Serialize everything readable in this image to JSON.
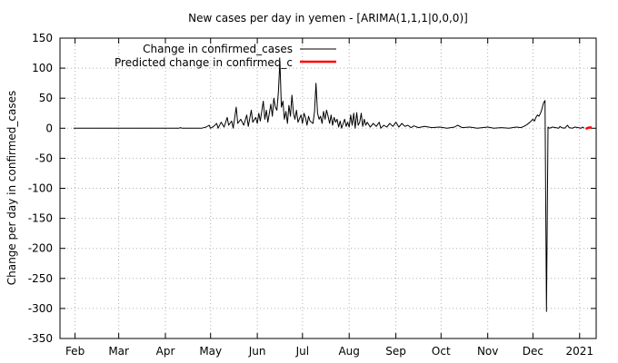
{
  "chart_data": {
    "type": "line",
    "title": "New cases per day in yemen -  [ARIMA(1,1,1|0,0,0)]",
    "xlabel": "",
    "ylabel": "Change per day in confirmed_cases",
    "ylim": [
      -350,
      150
    ],
    "yticks": [
      150,
      100,
      50,
      0,
      -50,
      -100,
      -150,
      -200,
      -250,
      -300,
      -350
    ],
    "xlim": [
      "2020-01-22",
      "2021-01-12"
    ],
    "xticks": [
      {
        "label": "Feb",
        "date": "2020-02-01"
      },
      {
        "label": "Mar",
        "date": "2020-03-01"
      },
      {
        "label": "Apr",
        "date": "2020-04-01"
      },
      {
        "label": "May",
        "date": "2020-05-01"
      },
      {
        "label": "Jun",
        "date": "2020-06-01"
      },
      {
        "label": "Jul",
        "date": "2020-07-01"
      },
      {
        "label": "Aug",
        "date": "2020-08-01"
      },
      {
        "label": "Sep",
        "date": "2020-09-01"
      },
      {
        "label": "Oct",
        "date": "2020-10-01"
      },
      {
        "label": "Nov",
        "date": "2020-11-01"
      },
      {
        "label": "Dec",
        "date": "2020-12-01"
      },
      {
        "label": "2021",
        "date": "2021-01-01"
      }
    ],
    "grid": true,
    "legend_position": "top-left",
    "series": [
      {
        "name": "Change in confirmed_cases",
        "color": "#000000",
        "points": [
          [
            "2020-01-31",
            0
          ],
          [
            "2020-04-10",
            0
          ],
          [
            "2020-04-11",
            1
          ],
          [
            "2020-04-12",
            0
          ],
          [
            "2020-04-25",
            0
          ],
          [
            "2020-04-28",
            2
          ],
          [
            "2020-04-30",
            5
          ],
          [
            "2020-05-01",
            0
          ],
          [
            "2020-05-03",
            3
          ],
          [
            "2020-05-05",
            8
          ],
          [
            "2020-05-06",
            0
          ],
          [
            "2020-05-08",
            10
          ],
          [
            "2020-05-10",
            2
          ],
          [
            "2020-05-12",
            18
          ],
          [
            "2020-05-13",
            5
          ],
          [
            "2020-05-15",
            12
          ],
          [
            "2020-05-16",
            0
          ],
          [
            "2020-05-18",
            35
          ],
          [
            "2020-05-19",
            8
          ],
          [
            "2020-05-21",
            15
          ],
          [
            "2020-05-23",
            5
          ],
          [
            "2020-05-25",
            22
          ],
          [
            "2020-05-26",
            3
          ],
          [
            "2020-05-28",
            30
          ],
          [
            "2020-05-29",
            10
          ],
          [
            "2020-05-31",
            18
          ],
          [
            "2020-06-01",
            8
          ],
          [
            "2020-06-02",
            25
          ],
          [
            "2020-06-03",
            12
          ],
          [
            "2020-06-05",
            45
          ],
          [
            "2020-06-06",
            15
          ],
          [
            "2020-06-07",
            30
          ],
          [
            "2020-06-08",
            10
          ],
          [
            "2020-06-10",
            40
          ],
          [
            "2020-06-11",
            20
          ],
          [
            "2020-06-12",
            50
          ],
          [
            "2020-06-13",
            35
          ],
          [
            "2020-06-14",
            30
          ],
          [
            "2020-06-15",
            60
          ],
          [
            "2020-06-16",
            112
          ],
          [
            "2020-06-17",
            35
          ],
          [
            "2020-06-18",
            45
          ],
          [
            "2020-06-19",
            15
          ],
          [
            "2020-06-20",
            28
          ],
          [
            "2020-06-21",
            8
          ],
          [
            "2020-06-22",
            38
          ],
          [
            "2020-06-23",
            20
          ],
          [
            "2020-06-24",
            55
          ],
          [
            "2020-06-25",
            25
          ],
          [
            "2020-06-26",
            15
          ],
          [
            "2020-06-27",
            30
          ],
          [
            "2020-06-28",
            10
          ],
          [
            "2020-06-30",
            22
          ],
          [
            "2020-07-01",
            8
          ],
          [
            "2020-07-02",
            25
          ],
          [
            "2020-07-03",
            18
          ],
          [
            "2020-07-04",
            5
          ],
          [
            "2020-07-05",
            20
          ],
          [
            "2020-07-06",
            12
          ],
          [
            "2020-07-08",
            8
          ],
          [
            "2020-07-09",
            28
          ],
          [
            "2020-07-10",
            75
          ],
          [
            "2020-07-11",
            25
          ],
          [
            "2020-07-12",
            15
          ],
          [
            "2020-07-13",
            20
          ],
          [
            "2020-07-14",
            8
          ],
          [
            "2020-07-15",
            28
          ],
          [
            "2020-07-16",
            15
          ],
          [
            "2020-07-17",
            30
          ],
          [
            "2020-07-18",
            20
          ],
          [
            "2020-07-19",
            8
          ],
          [
            "2020-07-20",
            22
          ],
          [
            "2020-07-21",
            5
          ],
          [
            "2020-07-22",
            18
          ],
          [
            "2020-07-23",
            10
          ],
          [
            "2020-07-24",
            15
          ],
          [
            "2020-07-25",
            2
          ],
          [
            "2020-07-26",
            12
          ],
          [
            "2020-07-27",
            0
          ],
          [
            "2020-07-28",
            8
          ],
          [
            "2020-07-29",
            15
          ],
          [
            "2020-07-30",
            3
          ],
          [
            "2020-07-31",
            10
          ],
          [
            "2020-08-01",
            2
          ],
          [
            "2020-08-02",
            22
          ],
          [
            "2020-08-03",
            5
          ],
          [
            "2020-08-04",
            25
          ],
          [
            "2020-08-05",
            0
          ],
          [
            "2020-08-06",
            26
          ],
          [
            "2020-08-07",
            5
          ],
          [
            "2020-08-08",
            10
          ],
          [
            "2020-08-09",
            25
          ],
          [
            "2020-08-10",
            3
          ],
          [
            "2020-08-11",
            15
          ],
          [
            "2020-08-12",
            5
          ],
          [
            "2020-08-13",
            10
          ],
          [
            "2020-08-15",
            2
          ],
          [
            "2020-08-17",
            8
          ],
          [
            "2020-08-19",
            3
          ],
          [
            "2020-08-21",
            10
          ],
          [
            "2020-08-22",
            0
          ],
          [
            "2020-08-24",
            5
          ],
          [
            "2020-08-26",
            2
          ],
          [
            "2020-08-28",
            8
          ],
          [
            "2020-08-30",
            3
          ],
          [
            "2020-09-01",
            10
          ],
          [
            "2020-09-03",
            2
          ],
          [
            "2020-09-05",
            8
          ],
          [
            "2020-09-07",
            3
          ],
          [
            "2020-09-09",
            5
          ],
          [
            "2020-09-11",
            1
          ],
          [
            "2020-09-13",
            4
          ],
          [
            "2020-09-16",
            1
          ],
          [
            "2020-09-20",
            3
          ],
          [
            "2020-09-25",
            1
          ],
          [
            "2020-09-30",
            2
          ],
          [
            "2020-10-05",
            0
          ],
          [
            "2020-10-10",
            2
          ],
          [
            "2020-10-12",
            5
          ],
          [
            "2020-10-15",
            1
          ],
          [
            "2020-10-20",
            2
          ],
          [
            "2020-10-25",
            0
          ],
          [
            "2020-11-01",
            2
          ],
          [
            "2020-11-05",
            0
          ],
          [
            "2020-11-10",
            1
          ],
          [
            "2020-11-15",
            0
          ],
          [
            "2020-11-20",
            2
          ],
          [
            "2020-11-23",
            1
          ],
          [
            "2020-11-25",
            3
          ],
          [
            "2020-11-27",
            6
          ],
          [
            "2020-11-29",
            10
          ],
          [
            "2020-12-01",
            15
          ],
          [
            "2020-12-02",
            12
          ],
          [
            "2020-12-03",
            18
          ],
          [
            "2020-12-04",
            22
          ],
          [
            "2020-12-05",
            20
          ],
          [
            "2020-12-06",
            25
          ],
          [
            "2020-12-07",
            32
          ],
          [
            "2020-12-08",
            42
          ],
          [
            "2020-12-09",
            46
          ],
          [
            "2020-12-10",
            -305
          ],
          [
            "2020-12-11",
            2
          ],
          [
            "2020-12-12",
            0
          ],
          [
            "2020-12-14",
            2
          ],
          [
            "2020-12-16",
            1
          ],
          [
            "2020-12-18",
            0
          ],
          [
            "2020-12-19",
            3
          ],
          [
            "2020-12-20",
            1
          ],
          [
            "2020-12-22",
            0
          ],
          [
            "2020-12-24",
            5
          ],
          [
            "2020-12-25",
            1
          ],
          [
            "2020-12-27",
            0
          ],
          [
            "2020-12-29",
            2
          ],
          [
            "2020-12-31",
            1
          ],
          [
            "2021-01-02",
            0
          ],
          [
            "2021-01-03",
            2
          ],
          [
            "2021-01-04",
            0
          ]
        ]
      },
      {
        "name": "Predicted change in confirmed_c",
        "color": "#ff0000",
        "points": [
          [
            "2021-01-05",
            -1
          ],
          [
            "2021-01-06",
            0
          ],
          [
            "2021-01-07",
            1
          ],
          [
            "2021-01-08",
            1
          ],
          [
            "2021-01-09",
            2
          ]
        ]
      }
    ]
  }
}
